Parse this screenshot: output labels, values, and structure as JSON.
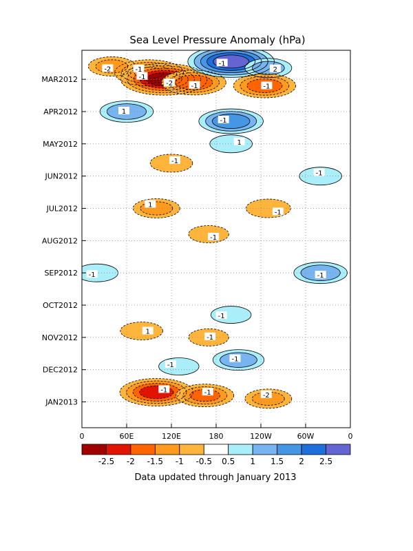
{
  "chart_data": {
    "type": "heatmap",
    "title": "Sea Level Pressure Anomaly (hPa)",
    "footnote": "Data updated through January 2013",
    "x_ticks": [
      "0",
      "60E",
      "120E",
      "180",
      "120W",
      "60W",
      "0"
    ],
    "x_tick_values": [
      0,
      60,
      120,
      180,
      240,
      300,
      360
    ],
    "xlim": [
      0,
      360
    ],
    "y_ticks": [
      "MAR2012",
      "APR2012",
      "MAY2012",
      "JUN2012",
      "JUL2012",
      "AUG2012",
      "SEP2012",
      "OCT2012",
      "NOV2012",
      "DEC2012",
      "JAN2013"
    ],
    "y_tick_values": [
      1,
      2,
      3,
      4,
      5,
      6,
      7,
      8,
      9,
      10,
      11
    ],
    "ylim": [
      0.1,
      11.8
    ],
    "colorbar": {
      "labels": [
        "-2.5",
        "-2",
        "-1.5",
        "-1",
        "-0.5",
        "0.5",
        "1",
        "1.5",
        "2",
        "2.5"
      ],
      "colors": [
        "#a00000",
        "#e01400",
        "#ff6400",
        "#ff9a1e",
        "#ffb43c",
        "#ffffff",
        "#aaeefa",
        "#78b4f0",
        "#4696e6",
        "#1e6edc",
        "#6464d2"
      ]
    },
    "contour_labels": [
      "-1",
      "-2",
      "-1",
      "-2",
      "-1",
      "2",
      "-1",
      "1",
      "-1",
      "1",
      "-1",
      "-1",
      "1",
      "-1",
      "-1",
      "-1",
      "-1",
      "-1",
      "1",
      "-1",
      "-1",
      "-1",
      "-1",
      "-1",
      "-2",
      "-1"
    ],
    "anomalies": [
      {
        "lon": 90,
        "t": 0.8,
        "value": -2.0
      },
      {
        "lon": 110,
        "t": 1.0,
        "value": -2.8
      },
      {
        "lon": 150,
        "t": 1.1,
        "value": -1.8
      },
      {
        "lon": 40,
        "t": 0.6,
        "value": -1.0
      },
      {
        "lon": 200,
        "t": 0.45,
        "value": 2.8
      },
      {
        "lon": 250,
        "t": 0.65,
        "value": 1.0
      },
      {
        "lon": 245,
        "t": 1.2,
        "value": -1.7
      },
      {
        "lon": 60,
        "t": 2.0,
        "value": 1.3
      },
      {
        "lon": 200,
        "t": 2.3,
        "value": 1.8
      },
      {
        "lon": 200,
        "t": 3.0,
        "value": 0.8
      },
      {
        "lon": 120,
        "t": 3.6,
        "value": -0.8
      },
      {
        "lon": 320,
        "t": 4.0,
        "value": 0.8
      },
      {
        "lon": 100,
        "t": 5.0,
        "value": -1.0
      },
      {
        "lon": 250,
        "t": 5.0,
        "value": -0.9
      },
      {
        "lon": 170,
        "t": 5.8,
        "value": -0.7
      },
      {
        "lon": 320,
        "t": 7.0,
        "value": 1.3
      },
      {
        "lon": 20,
        "t": 7.0,
        "value": 0.8
      },
      {
        "lon": 200,
        "t": 8.3,
        "value": 0.7
      },
      {
        "lon": 80,
        "t": 8.8,
        "value": -0.8
      },
      {
        "lon": 170,
        "t": 9.0,
        "value": -0.7
      },
      {
        "lon": 210,
        "t": 9.7,
        "value": 1.2
      },
      {
        "lon": 130,
        "t": 9.9,
        "value": 0.7
      },
      {
        "lon": 100,
        "t": 10.7,
        "value": -2.2
      },
      {
        "lon": 165,
        "t": 10.8,
        "value": -1.5
      },
      {
        "lon": 250,
        "t": 10.9,
        "value": -1.0
      }
    ]
  }
}
